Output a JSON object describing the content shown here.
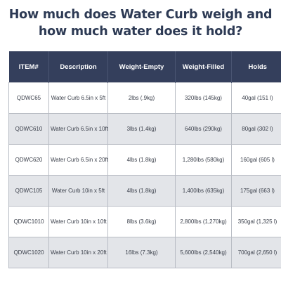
{
  "title": "How much does Water Curb weigh and how much water does it hold?",
  "table": {
    "headers": [
      "ITEM#",
      "Description",
      "Weight-Empty",
      "Weight-Filled",
      "Holds"
    ],
    "rows": [
      [
        "QDWC65",
        "Water Curb 6.5in x 5ft",
        "2lbs (.9kg)",
        "320lbs (145kg)",
        "40gal (151 l)"
      ],
      [
        "QDWC610",
        "Water Curb 6.5in x 10ft",
        "3lbs (1.4kg)",
        "640lbs (290kg)",
        "80gal (302 l)"
      ],
      [
        "QDWC620",
        "Water Curb 6.5in x 20ft",
        "4lbs (1.8kg)",
        "1,280lbs (580kg)",
        "160gal (605 l)"
      ],
      [
        "QDWC105",
        "Water Curb 10in x 5ft",
        "4lbs (1.8kg)",
        "1,400lbs (635kg)",
        "175gal (663 l)"
      ],
      [
        "QDWC1010",
        "Water Curb 10in x 10ft",
        "8lbs (3.6kg)",
        "2,800lbs (1,270kg)",
        "350gal (1,325 l)"
      ],
      [
        "QDWC1020",
        "Water Curb 10in x 20ft",
        "16lbs (7.3kg)",
        "5,600lbs (2,540kg)",
        "700gal (2,650 l)"
      ]
    ]
  },
  "colors": {
    "header_bg": "#343f5c",
    "title_text": "#2d3a54",
    "alt_row_bg": "#e3e5e9"
  }
}
